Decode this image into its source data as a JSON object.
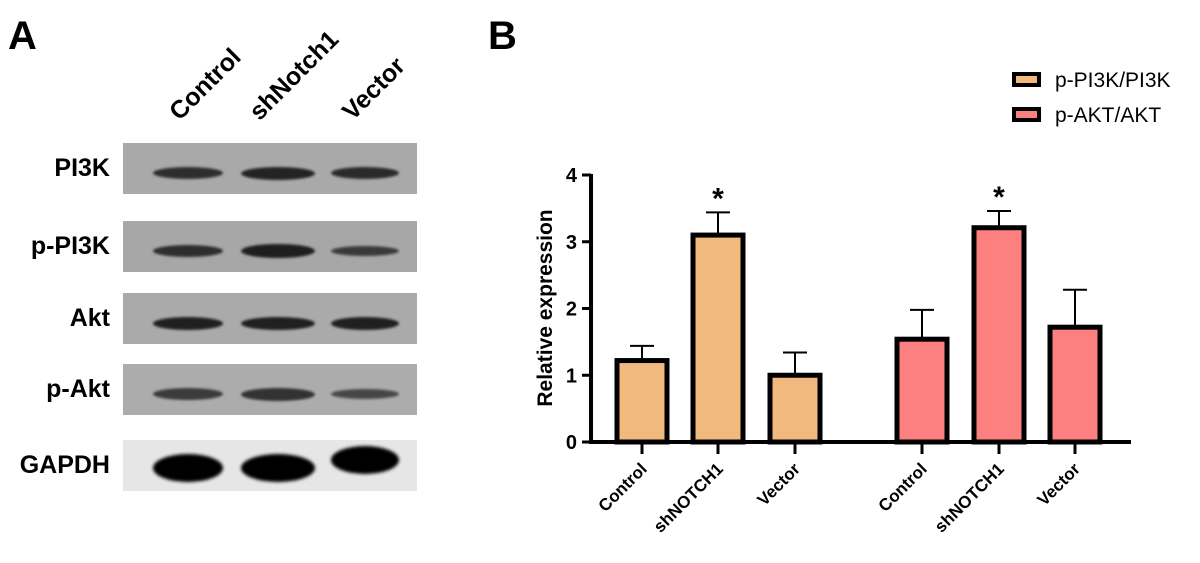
{
  "panel_a": {
    "letter": "A",
    "lanes": [
      "Control",
      "shNotch1",
      "Vector"
    ],
    "rows": [
      {
        "label": "PI3K",
        "bg": "#a9a9a9",
        "band_color": "#1e1e1e",
        "intensities": [
          0.75,
          0.9,
          0.8
        ]
      },
      {
        "label": "p-PI3K",
        "bg": "#a7a7a7",
        "band_color": "#1e1e1e",
        "intensities": [
          0.75,
          1.0,
          0.55
        ]
      },
      {
        "label": "Akt",
        "bg": "#aaaaaa",
        "band_color": "#1a1a1a",
        "intensities": [
          0.9,
          0.9,
          0.9
        ]
      },
      {
        "label": "p-Akt",
        "bg": "#acacac",
        "band_color": "#2a2a2a",
        "intensities": [
          0.7,
          0.85,
          0.5
        ]
      },
      {
        "label": "GAPDH",
        "bg": "#e6e6e6",
        "band_color": "#000000",
        "intensities": [
          1.0,
          1.0,
          1.0
        ]
      }
    ]
  },
  "panel_b": {
    "letter": "B"
  },
  "chart_data": {
    "type": "bar",
    "title": "",
    "xlabel": "",
    "ylabel": "Relative expression",
    "ylim": [
      0,
      4
    ],
    "yticks": [
      0,
      1,
      2,
      3,
      4
    ],
    "grid": false,
    "legend_position": "top-right",
    "groups": [
      {
        "name": "p-PI3K/PI3K",
        "color": "#f2b97e",
        "categories": [
          "Control",
          "shNOTCH1",
          "Vector"
        ],
        "values": [
          1.22,
          3.1,
          1.0
        ],
        "error_upper": [
          1.44,
          3.44,
          1.34
        ],
        "significance": [
          "",
          "*",
          ""
        ]
      },
      {
        "name": "p-AKT/AKT",
        "color": "#fd8080",
        "categories": [
          "Control",
          "shNOTCH1",
          "Vector"
        ],
        "values": [
          1.54,
          3.21,
          1.72
        ],
        "error_upper": [
          1.98,
          3.46,
          2.28
        ],
        "significance": [
          "",
          "*",
          ""
        ]
      }
    ]
  }
}
